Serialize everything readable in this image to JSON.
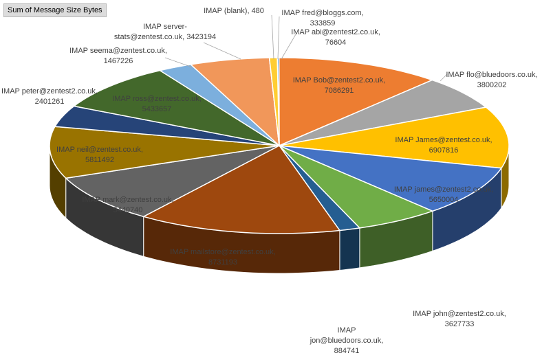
{
  "field_button": {
    "label": "Sum of Message Size Bytes"
  },
  "chart_data": {
    "type": "pie",
    "style": "3d-pie",
    "title": "",
    "legend": "none",
    "slices": [
      {
        "name": "IMAP abi@zentest2.co.uk",
        "value": 76604,
        "color": "#5b9bd5",
        "label_lines": [
          "IMAP abi@zentest2.co.uk,",
          "76604"
        ]
      },
      {
        "name": "IMAP Bob@zentest2.co.uk",
        "value": 7086291,
        "color": "#ed7d31",
        "label_lines": [
          "IMAP Bob@zentest2.co.uk,",
          "7086291"
        ]
      },
      {
        "name": "IMAP flo@bluedoors.co.uk",
        "value": 3800202,
        "color": "#a5a5a5",
        "label_lines": [
          "IMAP flo@bluedoors.co.uk,",
          "3800202"
        ]
      },
      {
        "name": "IMAP James@zentest.co.uk",
        "value": 6907816,
        "color": "#ffc000",
        "label_lines": [
          "IMAP James@zentest.co.uk,",
          "6907816"
        ]
      },
      {
        "name": "IMAP james@zentest2.co.uk",
        "value": 5650004,
        "color": "#4472c4",
        "label_lines": [
          "IMAP james@zentest2.co.uk,",
          "5650004"
        ]
      },
      {
        "name": "IMAP john@zentest2.co.uk",
        "value": 3627733,
        "color": "#70ad47",
        "label_lines": [
          "IMAP john@zentest2.co.uk,",
          "3627733"
        ]
      },
      {
        "name": "IMAP jon@bluedoors.co.uk",
        "value": 884741,
        "color": "#255e91",
        "label_lines": [
          "IMAP",
          "jon@bluedoors.co.uk,",
          "884741"
        ]
      },
      {
        "name": "IMAP mailstore@zentest.co.uk",
        "value": 8731193,
        "color": "#9e480e",
        "label_lines": [
          "IMAP mailstore@zentest.co.uk,",
          "8731193"
        ]
      },
      {
        "name": "IMAP mark@zentest.co.uk",
        "value": 5440740,
        "color": "#636363",
        "label_lines": [
          "IMAP mark@zentest.co.uk,",
          "5440740"
        ]
      },
      {
        "name": "IMAP neil@zentest.co.uk",
        "value": 5811492,
        "color": "#997300",
        "label_lines": [
          "IMAP neil@zentest.co.uk,",
          "5811492"
        ]
      },
      {
        "name": "IMAP peter@zentest2.co.uk",
        "value": 2401261,
        "color": "#264478",
        "label_lines": [
          "IMAP peter@zentest2.co.uk,",
          "2401261"
        ]
      },
      {
        "name": "IMAP ross@zentest.co.uk",
        "value": 5433657,
        "color": "#43682b",
        "label_lines": [
          "IMAP ross@zentest.co.uk,",
          "5433657"
        ]
      },
      {
        "name": "IMAP seema@zentest.co.uk",
        "value": 1467226,
        "color": "#7cafdd",
        "label_lines": [
          "IMAP seema@zentest.co.uk,",
          "1467226"
        ]
      },
      {
        "name": "IMAP server-stats@zentest.co.uk",
        "value": 3423194,
        "color": "#f1975a",
        "label_lines": [
          "IMAP server-",
          "stats@zentest.co.uk, 3423194"
        ]
      },
      {
        "name": "IMAP (blank)",
        "value": 480,
        "color": "#b7b7b7",
        "label_lines": [
          "IMAP (blank), 480"
        ]
      },
      {
        "name": "IMAP fred@bloggs.com",
        "value": 333859,
        "color": "#ffcd33",
        "label_lines": [
          "IMAP fred@bloggs.com,",
          "333859"
        ]
      }
    ]
  }
}
